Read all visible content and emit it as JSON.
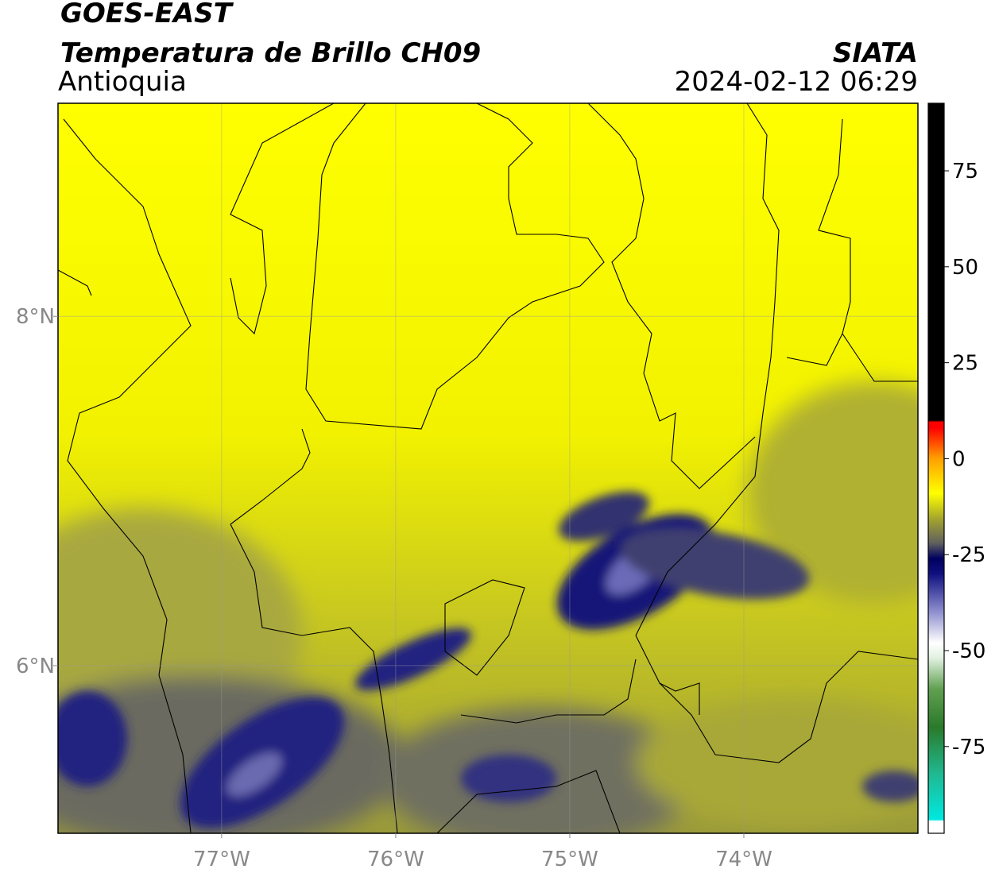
{
  "header": {
    "satellite": "GOES-EAST",
    "product": "Temperatura de Brillo CH09",
    "region": "Antioquia",
    "agency": "SIATA",
    "timestamp": "2024-02-12 06:29"
  },
  "map": {
    "lon_lim": [
      -77.94,
      -73.0
    ],
    "lat_lim": [
      5.04,
      9.22
    ],
    "lon_ticks": [
      {
        "value": -77,
        "label": "77°W"
      },
      {
        "value": -76,
        "label": "76°W"
      },
      {
        "value": -75,
        "label": "75°W"
      },
      {
        "value": -74,
        "label": "74°W"
      }
    ],
    "lat_ticks": [
      {
        "value": 8,
        "label": "8°N"
      },
      {
        "value": 6,
        "label": "6°N"
      }
    ],
    "grid": true
  },
  "colorbar": {
    "lim": [
      -97.6,
      92.6
    ],
    "ticks": [
      75,
      50,
      25,
      0,
      -25,
      -50,
      -75
    ],
    "stops": [
      {
        "value": -97.6,
        "color": "#ffffff"
      },
      {
        "value": -94.5,
        "color": "#ffffff"
      },
      {
        "value": -94,
        "color": "#00e8e0"
      },
      {
        "value": -82,
        "color": "#20b890"
      },
      {
        "value": -70,
        "color": "#2a7a2a"
      },
      {
        "value": -60,
        "color": "#60a050"
      },
      {
        "value": -52,
        "color": "#e0f0e0"
      },
      {
        "value": -48,
        "color": "#ffffff"
      },
      {
        "value": -40,
        "color": "#9090d0"
      },
      {
        "value": -30,
        "color": "#101080"
      },
      {
        "value": -26,
        "color": "#000060"
      },
      {
        "value": -22,
        "color": "#606060"
      },
      {
        "value": -16,
        "color": "#a0a030"
      },
      {
        "value": -9,
        "color": "#ffff00"
      },
      {
        "value": 0,
        "color": "#ffa000"
      },
      {
        "value": 8,
        "color": "#ff0000"
      },
      {
        "value": 9.5,
        "color": "#ff0000"
      },
      {
        "value": 10,
        "color": "#000000"
      },
      {
        "value": 92.6,
        "color": "#000000"
      }
    ]
  }
}
